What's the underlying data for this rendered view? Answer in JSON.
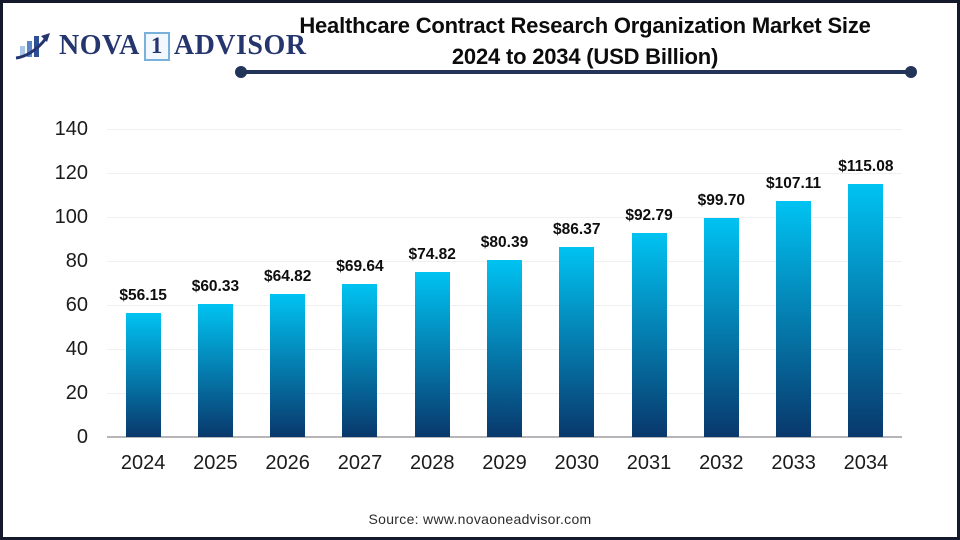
{
  "logo": {
    "text_nova": "NOVA",
    "text_one": "1",
    "text_advisor": "ADVISOR"
  },
  "header": {
    "title_line1": "Healthcare Contract Research Organization Market Size",
    "title_line2": "2024 to 2034 (USD Billion)"
  },
  "chart_data": {
    "type": "bar",
    "title": "Healthcare Contract Research Organization Market Size 2024 to 2034 (USD Billion)",
    "categories": [
      "2024",
      "2025",
      "2026",
      "2027",
      "2028",
      "2029",
      "2030",
      "2031",
      "2032",
      "2033",
      "2034"
    ],
    "values": [
      56.15,
      60.33,
      64.82,
      69.64,
      74.82,
      80.39,
      86.37,
      92.79,
      99.7,
      107.11,
      115.08
    ],
    "value_labels": [
      "$56.15",
      "$60.33",
      "$64.82",
      "$69.64",
      "$74.82",
      "$80.39",
      "$86.37",
      "$92.79",
      "$99.70",
      "$107.11",
      "$115.08"
    ],
    "xlabel": "",
    "ylabel": "",
    "ylim": [
      0,
      140
    ],
    "yticks": [
      0,
      20,
      40,
      60,
      80,
      100,
      120,
      140
    ],
    "grid": true,
    "legend_position": "none",
    "bar_color_top": "#00c3f2",
    "bar_color_bottom": "#09386c"
  },
  "footer": {
    "source": "Source: www.novaoneadvisor.com"
  },
  "colors": {
    "logo_navy": "#25356e",
    "underline_navy": "#223457",
    "grid_line": "#f0f0f2",
    "axis_line": "#b6b6ba",
    "title_text": "#0c0c0c"
  }
}
